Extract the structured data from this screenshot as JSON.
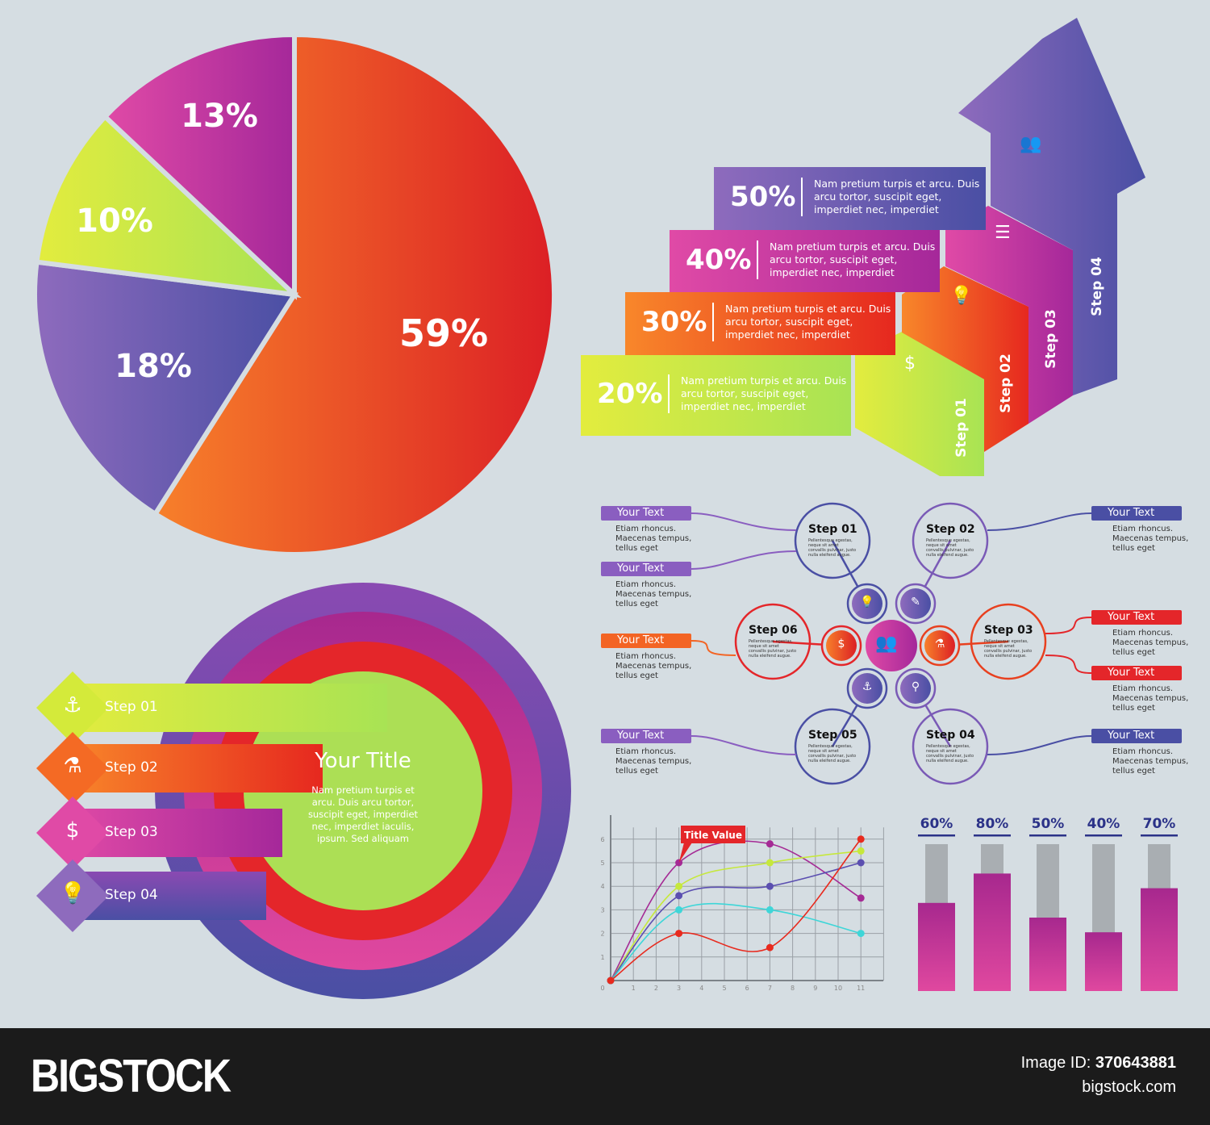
{
  "chart_data": [
    {
      "type": "pie",
      "values": [
        59,
        18,
        10,
        13
      ],
      "labels": [
        "59%",
        "18%",
        "10%",
        "13%"
      ],
      "colors": [
        "#e4262a",
        "#6b5fb5",
        "#c8e84a",
        "#b0329c"
      ]
    },
    {
      "type": "bar",
      "subtype": "staircase",
      "categories": [
        "Step 01",
        "Step 02",
        "Step 03",
        "Step 04"
      ],
      "values": [
        20,
        30,
        40,
        50
      ],
      "labels": [
        "20%",
        "30%",
        "40%",
        "50%"
      ],
      "description": "Nam pretium turpis et arcu. Duis arcu tortor, suscipit eget, imperdiet nec, imperdiet",
      "colors": [
        "#b9e640",
        "#f4511e",
        "#c42ea0",
        "#6a55b2"
      ]
    },
    {
      "type": "line",
      "xlim": [
        0,
        12
      ],
      "ylim": [
        0,
        6
      ],
      "xticks": [
        0,
        1,
        2,
        3,
        4,
        5,
        6,
        7,
        8,
        9,
        10,
        11
      ],
      "yticks": [
        1,
        2,
        3,
        4,
        5,
        6
      ],
      "grid": true,
      "annotation": "Title Value",
      "x": [
        0,
        3,
        7,
        11
      ],
      "series": [
        {
          "color": "#a52a95",
          "values": [
            0,
            5,
            5.8,
            3.5
          ]
        },
        {
          "color": "#c6e83c",
          "values": [
            0,
            4,
            5,
            5.5
          ]
        },
        {
          "color": "#5b4fb0",
          "values": [
            0,
            3.6,
            4,
            5
          ]
        },
        {
          "color": "#3ed6d8",
          "values": [
            0,
            3,
            3,
            2
          ]
        },
        {
          "color": "#e82a1e",
          "values": [
            0,
            2,
            1.4,
            6
          ]
        }
      ]
    },
    {
      "type": "bar",
      "values": [
        60,
        80,
        50,
        40,
        70
      ],
      "labels": [
        "60%",
        "80%",
        "50%",
        "40%",
        "70%"
      ],
      "ylim": [
        0,
        100
      ],
      "colors": {
        "fill": "#b02a90",
        "track": "#a9aeb2",
        "label": "#2b3288"
      }
    }
  ],
  "circle_diagram": {
    "title": "Your Title",
    "text": "Nam pretium turpis et arcu. Duis arcu tortor, suscipit eget, imperdiet nec, imperdiet  iaculis, ipsum. Sed aliquam",
    "steps": [
      {
        "label": "Step 01",
        "icon": "anchor-icon"
      },
      {
        "label": "Step 02",
        "icon": "flask-icon"
      },
      {
        "label": "Step 03",
        "icon": "money-bag-icon"
      },
      {
        "label": "Step 04",
        "icon": "lightbulb-icon"
      }
    ]
  },
  "cycle": {
    "step_text": "Pellentesque egestas, neque sit amet convallis pulvinar, justo nulla eleifend augue.",
    "steps": [
      "Step 01",
      "Step 02",
      "Step 03",
      "Step 04",
      "Step 05",
      "Step 06"
    ],
    "callout_title": "Your Text",
    "callout_text": "Etiam rhoncus. Maecenas tempus, tellus eget"
  },
  "footer": {
    "logo": "BIGSTOCK",
    "image_id_label": "Image ID:",
    "image_id": "370643881",
    "site": "bigstock.com"
  }
}
